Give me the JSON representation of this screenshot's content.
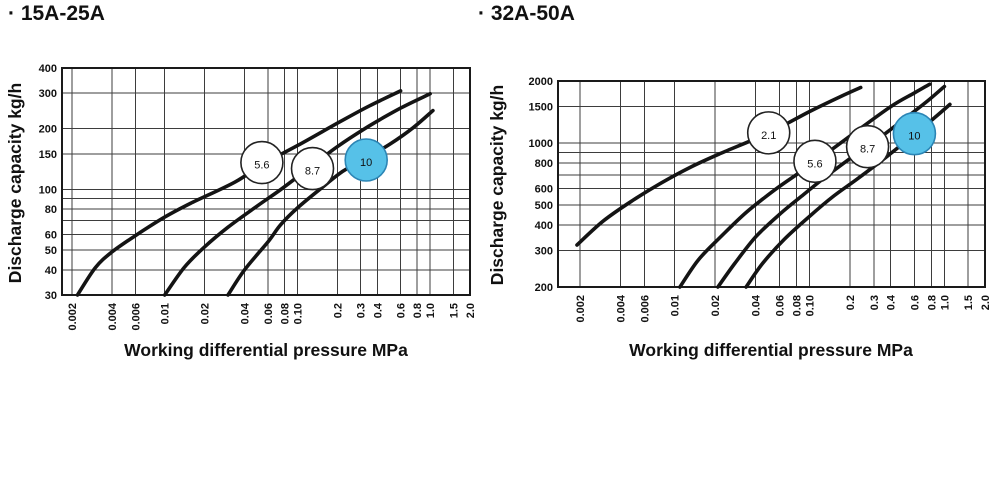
{
  "chart_data": [
    {
      "type": "line",
      "title": "· 15A-25A",
      "ylabel": "Discharge capacity kg/h",
      "xlabel": "Working differential pressure MPa",
      "x_scale": "log",
      "y_scale": "log",
      "xlim": [
        0.002,
        2.0
      ],
      "ylim": [
        30,
        400
      ],
      "grid": true,
      "x_ticks": [
        {
          "v": 0.002,
          "label": "0.002"
        },
        {
          "v": 0.004,
          "label": "0.004"
        },
        {
          "v": 0.006,
          "label": "0.006"
        },
        {
          "v": 0.01,
          "label": "0.01"
        },
        {
          "v": 0.02,
          "label": "0.02"
        },
        {
          "v": 0.04,
          "label": "0.04"
        },
        {
          "v": 0.06,
          "label": "0.06"
        },
        {
          "v": 0.08,
          "label": "0.08"
        },
        {
          "v": 0.1,
          "label": "0.10"
        },
        {
          "v": 0.2,
          "label": "0.2"
        },
        {
          "v": 0.3,
          "label": "0.3"
        },
        {
          "v": 0.4,
          "label": "0.4"
        },
        {
          "v": 0.6,
          "label": "0.6"
        },
        {
          "v": 0.8,
          "label": "0.8"
        },
        {
          "v": 1.0,
          "label": "1.0"
        },
        {
          "v": 1.5,
          "label": "1.5"
        },
        {
          "v": 2.0,
          "label": "2.0"
        }
      ],
      "y_ticks": [
        {
          "v": 30,
          "label": "30"
        },
        {
          "v": 40,
          "label": "40"
        },
        {
          "v": 50,
          "label": "50"
        },
        {
          "v": 60,
          "label": "60"
        },
        {
          "v": 70,
          "label": ""
        },
        {
          "v": 80,
          "label": "80"
        },
        {
          "v": 90,
          "label": ""
        },
        {
          "v": 100,
          "label": "100"
        },
        {
          "v": 150,
          "label": "150"
        },
        {
          "v": 200,
          "label": "200"
        },
        {
          "v": 300,
          "label": "300"
        },
        {
          "v": 400,
          "label": "400"
        }
      ],
      "series": [
        {
          "name": "5.6",
          "points": [
            [
              0.0022,
              30
            ],
            [
              0.003,
              41
            ],
            [
              0.004,
              49
            ],
            [
              0.006,
              59
            ],
            [
              0.01,
              73
            ],
            [
              0.016,
              86
            ],
            [
              0.034,
              109
            ],
            [
              0.054,
              133
            ],
            [
              0.1,
              165
            ],
            [
              0.2,
              213
            ],
            [
              0.35,
              260
            ],
            [
              0.6,
              308
            ]
          ],
          "badge": {
            "x": 0.054,
            "y": 136,
            "fill": "#ffffff",
            "stroke": "#222222",
            "text_color": "#111111"
          }
        },
        {
          "name": "8.7",
          "points": [
            [
              0.01,
              30
            ],
            [
              0.014,
              41
            ],
            [
              0.02,
              52
            ],
            [
              0.03,
              65
            ],
            [
              0.05,
              83
            ],
            [
              0.075,
              100
            ],
            [
              0.11,
              121
            ],
            [
              0.2,
              163
            ],
            [
              0.35,
              207
            ],
            [
              0.6,
              253
            ],
            [
              1.0,
              298
            ]
          ],
          "badge": {
            "x": 0.13,
            "y": 127,
            "fill": "#ffffff",
            "stroke": "#222222",
            "text_color": "#111111"
          }
        },
        {
          "name": "10",
          "points": [
            [
              0.03,
              30
            ],
            [
              0.04,
              40
            ],
            [
              0.06,
              55
            ],
            [
              0.075,
              67
            ],
            [
              0.1,
              81
            ],
            [
              0.15,
              101
            ],
            [
              0.22,
              123
            ],
            [
              0.33,
              143
            ],
            [
              0.5,
              168
            ],
            [
              0.75,
              203
            ],
            [
              1.05,
              246
            ]
          ],
          "badge": {
            "x": 0.33,
            "y": 140,
            "fill": "#56c1e8",
            "stroke": "#2b85b5",
            "text_color": "#ffffff"
          }
        }
      ]
    },
    {
      "type": "line",
      "title": "· 32A-50A",
      "ylabel": "Discharge capacity kg/h",
      "xlabel": "Working differential pressure MPa",
      "x_scale": "log",
      "y_scale": "log",
      "xlim": [
        0.002,
        2.0
      ],
      "ylim": [
        200,
        2000
      ],
      "grid": true,
      "x_ticks": [
        {
          "v": 0.002,
          "label": "0.002"
        },
        {
          "v": 0.004,
          "label": "0.004"
        },
        {
          "v": 0.006,
          "label": "0.006"
        },
        {
          "v": 0.01,
          "label": "0.01"
        },
        {
          "v": 0.02,
          "label": "0.02"
        },
        {
          "v": 0.04,
          "label": "0.04"
        },
        {
          "v": 0.06,
          "label": "0.06"
        },
        {
          "v": 0.08,
          "label": "0.08"
        },
        {
          "v": 0.1,
          "label": "0.10"
        },
        {
          "v": 0.2,
          "label": "0.2"
        },
        {
          "v": 0.3,
          "label": "0.3"
        },
        {
          "v": 0.4,
          "label": "0.4"
        },
        {
          "v": 0.6,
          "label": "0.6"
        },
        {
          "v": 0.8,
          "label": "0.8"
        },
        {
          "v": 1.0,
          "label": "1.0"
        },
        {
          "v": 1.5,
          "label": "1.5"
        },
        {
          "v": 2.0,
          "label": "2.0"
        }
      ],
      "y_ticks": [
        {
          "v": 200,
          "label": "200"
        },
        {
          "v": 300,
          "label": "300"
        },
        {
          "v": 400,
          "label": "400"
        },
        {
          "v": 500,
          "label": "500"
        },
        {
          "v": 600,
          "label": "600"
        },
        {
          "v": 700,
          "label": ""
        },
        {
          "v": 800,
          "label": "800"
        },
        {
          "v": 900,
          "label": ""
        },
        {
          "v": 1000,
          "label": "1000"
        },
        {
          "v": 1500,
          "label": "1500"
        },
        {
          "v": 2000,
          "label": "2000"
        }
      ],
      "series": [
        {
          "name": "2.1",
          "points": [
            [
              0.0019,
              320
            ],
            [
              0.003,
              420
            ],
            [
              0.005,
              530
            ],
            [
              0.008,
              640
            ],
            [
              0.013,
              760
            ],
            [
              0.022,
              890
            ],
            [
              0.05,
              1120
            ],
            [
              0.1,
              1420
            ],
            [
              0.17,
              1680
            ],
            [
              0.24,
              1860
            ]
          ],
          "badge": {
            "x": 0.05,
            "y": 1120,
            "fill": "#ffffff",
            "stroke": "#222222",
            "text_color": "#111111"
          }
        },
        {
          "name": "5.6",
          "points": [
            [
              0.011,
              200
            ],
            [
              0.015,
              270
            ],
            [
              0.022,
              350
            ],
            [
              0.034,
              460
            ],
            [
              0.055,
              590
            ],
            [
              0.085,
              720
            ],
            [
              0.11,
              810
            ],
            [
              0.2,
              1080
            ],
            [
              0.4,
              1500
            ],
            [
              0.6,
              1750
            ],
            [
              0.78,
              1930
            ]
          ],
          "badge": {
            "x": 0.11,
            "y": 815,
            "fill": "#ffffff",
            "stroke": "#222222",
            "text_color": "#111111"
          }
        },
        {
          "name": "8.7",
          "points": [
            [
              0.021,
              200
            ],
            [
              0.028,
              260
            ],
            [
              0.04,
              350
            ],
            [
              0.06,
              450
            ],
            [
              0.09,
              560
            ],
            [
              0.13,
              680
            ],
            [
              0.2,
              840
            ],
            [
              0.27,
              960
            ],
            [
              0.5,
              1300
            ],
            [
              0.75,
              1600
            ],
            [
              1.0,
              1880
            ]
          ],
          "badge": {
            "x": 0.27,
            "y": 960,
            "fill": "#ffffff",
            "stroke": "#222222",
            "text_color": "#111111"
          }
        },
        {
          "name": "10",
          "points": [
            [
              0.034,
              200
            ],
            [
              0.045,
              260
            ],
            [
              0.065,
              340
            ],
            [
              0.1,
              440
            ],
            [
              0.15,
              550
            ],
            [
              0.22,
              660
            ],
            [
              0.35,
              830
            ],
            [
              0.6,
              1100
            ],
            [
              0.85,
              1330
            ],
            [
              1.1,
              1540
            ]
          ],
          "badge": {
            "x": 0.6,
            "y": 1110,
            "fill": "#56c1e8",
            "stroke": "#2b85b5",
            "text_color": "#ffffff"
          }
        }
      ]
    }
  ],
  "colors": {
    "curve": "#141414",
    "grid": "#3d3d3d",
    "border": "#1a1a1a",
    "text": "#111111",
    "highlight_blue": "#56c1e8"
  }
}
